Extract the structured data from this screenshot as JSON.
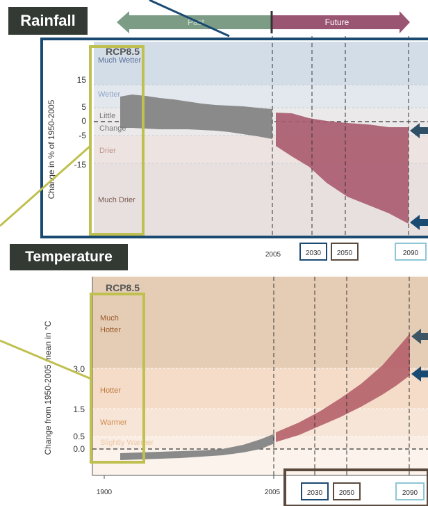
{
  "badges": {
    "rainfall": "Rainfall",
    "temperature": "Temperature"
  },
  "timeline": {
    "past": "Past",
    "future": "Future"
  },
  "rainfall": {
    "scenario": "RCP8.5",
    "ylabel": "Change in % of 1950-2005",
    "ticks": [
      "15",
      "5",
      "0",
      "-5",
      "-15"
    ],
    "bands": [
      "Much Wetter",
      "Wetter",
      "Little",
      "Change",
      "Drier",
      "Much Drier"
    ]
  },
  "temperature": {
    "scenario": "RCP8.5",
    "ylabel": "Change from 1950-2005 mean in °C",
    "ticks": [
      "3.0",
      "1.5",
      "0.5",
      "0.0"
    ],
    "bands": [
      "Much",
      "Hotter",
      "Hotter",
      "Warmer",
      "Slightly Warmer"
    ]
  },
  "years": {
    "y2005": "2005",
    "y2030": "2030",
    "y2050": "2050",
    "y2090": "2090",
    "y1900": "1900"
  },
  "colors": {
    "navy": "#1a4a72",
    "olive": "#bfc04f",
    "historical": "#8a8a8a",
    "future": "#a85a6e",
    "badge": "#333a33"
  }
}
